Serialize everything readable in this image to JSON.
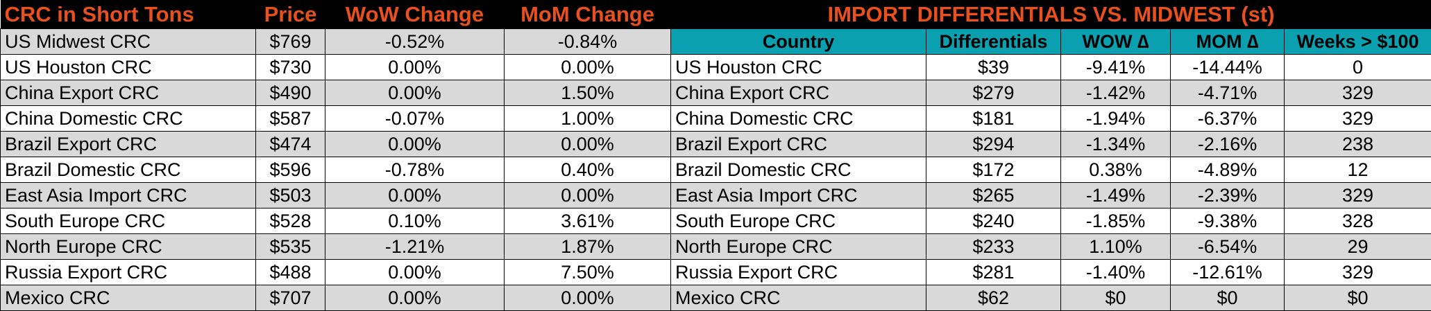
{
  "left_table": {
    "headers": [
      "CRC in Short Tons",
      "Price",
      "WoW Change",
      "MoM Change"
    ],
    "rows": [
      {
        "name": "US Midwest CRC",
        "price": "$769",
        "wow": "-0.52%",
        "mom": "-0.84%"
      },
      {
        "name": "US Houston CRC",
        "price": "$730",
        "wow": "0.00%",
        "mom": "0.00%"
      },
      {
        "name": "China Export CRC",
        "price": "$490",
        "wow": "0.00%",
        "mom": "1.50%"
      },
      {
        "name": "China Domestic CRC",
        "price": "$587",
        "wow": "-0.07%",
        "mom": "1.00%"
      },
      {
        "name": "Brazil Export CRC",
        "price": "$474",
        "wow": "0.00%",
        "mom": "0.00%"
      },
      {
        "name": "Brazil Domestic CRC",
        "price": "$596",
        "wow": "-0.78%",
        "mom": "0.40%"
      },
      {
        "name": "East Asia Import CRC",
        "price": "$503",
        "wow": "0.00%",
        "mom": "0.00%"
      },
      {
        "name": "South Europe CRC",
        "price": "$528",
        "wow": "0.10%",
        "mom": "3.61%"
      },
      {
        "name": "North Europe CRC",
        "price": "$535",
        "wow": "-1.21%",
        "mom": "1.87%"
      },
      {
        "name": "Russia Export CRC",
        "price": "$488",
        "wow": "0.00%",
        "mom": "7.50%"
      },
      {
        "name": "Mexico CRC",
        "price": "$707",
        "wow": "0.00%",
        "mom": "0.00%"
      }
    ]
  },
  "right_table": {
    "title": "IMPORT DIFFERENTIALS VS. MIDWEST (st)",
    "headers": [
      "Country",
      "Differentials",
      "WOW ∆",
      "MOM ∆",
      "Weeks > $100"
    ],
    "rows": [
      {
        "name": "US Houston CRC",
        "diff": "$39",
        "wow": "-9.41%",
        "mom": "-14.44%",
        "weeks": "0"
      },
      {
        "name": "China Export CRC",
        "diff": "$279",
        "wow": "-1.42%",
        "mom": "-4.71%",
        "weeks": "329"
      },
      {
        "name": "China Domestic CRC",
        "diff": "$181",
        "wow": "-1.94%",
        "mom": "-6.37%",
        "weeks": "329"
      },
      {
        "name": "Brazil Export CRC",
        "diff": "$294",
        "wow": "-1.34%",
        "mom": "-2.16%",
        "weeks": "238"
      },
      {
        "name": "Brazil Domestic CRC",
        "diff": "$172",
        "wow": "0.38%",
        "mom": "-4.89%",
        "weeks": "12"
      },
      {
        "name": "East Asia Import CRC",
        "diff": "$265",
        "wow": "-1.49%",
        "mom": "-2.39%",
        "weeks": "329"
      },
      {
        "name": "South Europe CRC",
        "diff": "$240",
        "wow": "-1.85%",
        "mom": "-9.38%",
        "weeks": "328"
      },
      {
        "name": "North Europe CRC",
        "diff": "$233",
        "wow": "1.10%",
        "mom": "-6.54%",
        "weeks": "29"
      },
      {
        "name": "Russia Export CRC",
        "diff": "$281",
        "wow": "-1.40%",
        "mom": "-12.61%",
        "weeks": "329"
      },
      {
        "name": "Mexico CRC",
        "diff": "$62",
        "wow": "$0",
        "mom": "$0",
        "weeks": "$0"
      }
    ]
  },
  "colors": {
    "header_bg": "#000000",
    "header_text": "#e8501e",
    "subheader_bg": "#0aa0b0",
    "row_alt": "#d9d9d9"
  }
}
